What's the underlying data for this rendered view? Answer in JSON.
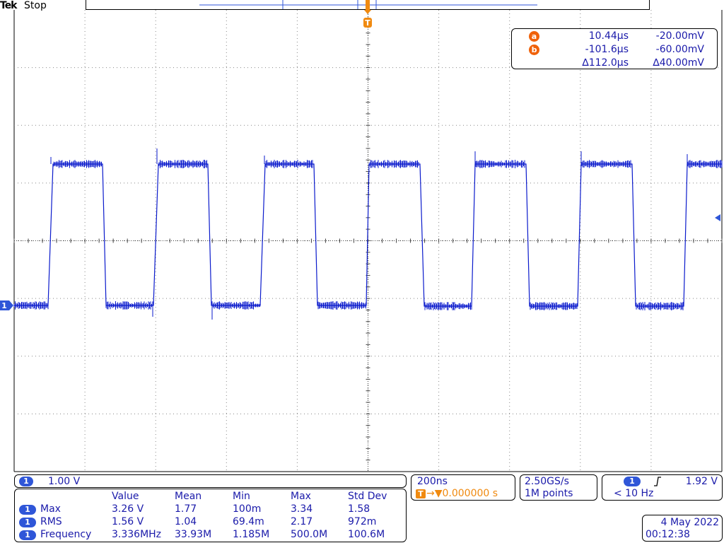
{
  "header": {
    "brand": "Tek",
    "status": "Stop",
    "trigger_marker": "T"
  },
  "cursors": {
    "a": {
      "badge": "a",
      "time": "10.44µs",
      "voltage": "-20.00mV"
    },
    "b": {
      "badge": "b",
      "time": "-101.6µs",
      "voltage": "-60.00mV"
    },
    "delta": {
      "time": "∆112.0µs",
      "voltage": "∆40.00mV"
    }
  },
  "channel": {
    "number": "1",
    "scale": "1.00 V",
    "color": "#1a1aaa",
    "trace_color": "#0a1acc"
  },
  "timebase": {
    "scale": "200ns",
    "trigger_marker": "T",
    "delay": "→▼0.000000 s"
  },
  "acquisition": {
    "sample_rate": "2.50GS/s",
    "record_length": "1M points"
  },
  "trigger": {
    "channel": "1",
    "slope_icon": "rising-edge-icon",
    "level": "1.92 V",
    "frequency": "< 10 Hz"
  },
  "measurements": {
    "headers": [
      "Value",
      "Mean",
      "Min",
      "Max",
      "Std Dev"
    ],
    "rows": [
      {
        "channel": "1",
        "name": "Max",
        "value": "3.26 V",
        "mean": "1.77",
        "min": "100m",
        "max": "3.34",
        "std": "1.58"
      },
      {
        "channel": "1",
        "name": "RMS",
        "value": "1.56 V",
        "mean": "1.04",
        "min": "69.4m",
        "max": "2.17",
        "std": "972m"
      },
      {
        "channel": "1",
        "name": "Frequency",
        "value": "3.336MHz",
        "mean": "33.93M",
        "min": "1.185M",
        "max": "500.0M",
        "std": "100.6M"
      }
    ]
  },
  "datetime": {
    "date": "4 May 2022",
    "time": "00:12:38"
  }
}
